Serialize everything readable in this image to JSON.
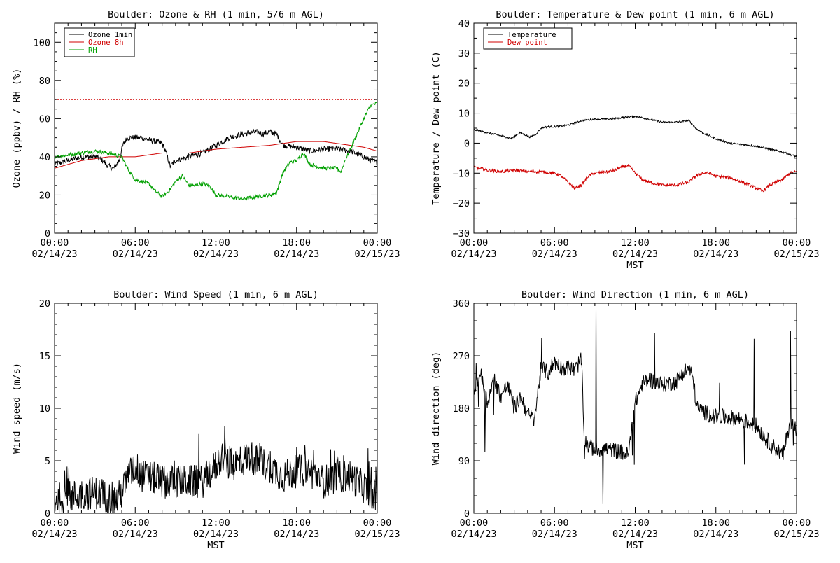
{
  "chart_data": [
    {
      "type": "line",
      "title": "Boulder: Ozone & RH (1 min, 5/6 m AGL)",
      "xlabel": "",
      "ylabel": "Ozone (ppbv) / RH (%)",
      "xlim": [
        0,
        24
      ],
      "ylim": [
        0,
        110
      ],
      "xticks": [
        0,
        6,
        12,
        18,
        24
      ],
      "xtick_labels": [
        [
          "00:00",
          "02/14/23"
        ],
        [
          "06:00",
          "02/14/23"
        ],
        [
          "12:00",
          "02/14/23"
        ],
        [
          "18:00",
          "02/14/23"
        ],
        [
          "00:00",
          "02/15/23"
        ]
      ],
      "yticks": [
        0,
        20,
        40,
        60,
        80,
        100
      ],
      "ytick_labels": [
        "0",
        "20",
        "40",
        "60",
        "80",
        "100"
      ],
      "legend_position": "top-left",
      "reference_line": {
        "y": 70,
        "color": "#d00000",
        "style": "dotted"
      },
      "series": [
        {
          "name": "Ozone 1min",
          "color": "#000000",
          "noise": 1.5,
          "x": [
            0,
            1,
            2,
            3,
            3.6,
            4,
            4.4,
            4.8,
            5,
            5.2,
            5.5,
            6,
            6.5,
            7,
            7.5,
            8,
            8.3,
            8.6,
            9,
            10,
            11,
            12,
            13,
            14,
            15,
            15.5,
            16,
            16.5,
            17,
            18,
            19,
            20,
            21,
            22,
            23,
            23.5,
            24
          ],
          "y": [
            36,
            38,
            40,
            40,
            38,
            35,
            34,
            38,
            44,
            48,
            50,
            50,
            50,
            49,
            48,
            47,
            42,
            35,
            38,
            40,
            42,
            46,
            50,
            52,
            53,
            52,
            53,
            52,
            46,
            45,
            43,
            44,
            44,
            43,
            40,
            38,
            37
          ]
        },
        {
          "name": "Ozone 8h",
          "color": "#d00000",
          "noise": 0,
          "x": [
            0,
            2,
            4,
            6,
            8,
            10,
            12,
            14,
            16,
            17,
            18,
            19,
            20,
            21,
            22,
            23,
            24
          ],
          "y": [
            34,
            38,
            40,
            40,
            42,
            42,
            44,
            45,
            46,
            47,
            48,
            48,
            48,
            47,
            46,
            45,
            43
          ]
        },
        {
          "name": "RH",
          "color": "#00a000",
          "noise": 1,
          "x": [
            0,
            1,
            2,
            3,
            4,
            5,
            5.5,
            6,
            7,
            7.5,
            8,
            8.5,
            9,
            9.5,
            10,
            10.5,
            11,
            11.5,
            12,
            13,
            14,
            15,
            16,
            16.5,
            17,
            17.5,
            18,
            18.5,
            19,
            20,
            21,
            21.3,
            21.6,
            22,
            22.5,
            23,
            23.5,
            24
          ],
          "y": [
            40,
            41,
            42,
            43,
            42,
            40,
            33,
            28,
            26,
            22,
            19,
            22,
            27,
            30,
            25,
            25,
            26,
            25,
            20,
            19,
            18,
            19,
            20,
            21,
            32,
            37,
            38,
            42,
            36,
            34,
            34,
            32,
            38,
            44,
            52,
            60,
            67,
            68
          ]
        }
      ]
    },
    {
      "type": "line",
      "title": "Boulder: Temperature & Dew point (1 min, 6 m AGL)",
      "xlabel": "MST",
      "ylabel": "Temperature / Dew point (C)",
      "xlim": [
        0,
        24
      ],
      "ylim": [
        -30,
        40
      ],
      "xticks": [
        0,
        6,
        12,
        18,
        24
      ],
      "xtick_labels": [
        [
          "00:00",
          "02/14/23"
        ],
        [
          "06:00",
          "02/14/23"
        ],
        [
          "12:00",
          "02/14/23"
        ],
        [
          "18:00",
          "02/14/23"
        ],
        [
          "00:00",
          "02/15/23"
        ]
      ],
      "yticks": [
        -30,
        -20,
        -10,
        0,
        10,
        20,
        30,
        40
      ],
      "ytick_labels": [
        "−30",
        "−20",
        "−10",
        "0",
        "10",
        "20",
        "30",
        "40"
      ],
      "legend_position": "top-left",
      "series": [
        {
          "name": "Temperature",
          "color": "#000000",
          "noise": 0.3,
          "x": [
            0,
            1,
            2,
            2.8,
            3.4,
            3.7,
            4.2,
            4.6,
            5,
            5.5,
            6,
            7,
            8,
            9,
            10,
            11,
            12,
            13,
            14,
            15,
            16,
            16.5,
            17,
            18,
            19,
            20,
            21,
            22,
            23,
            24
          ],
          "y": [
            4.5,
            3.5,
            2.5,
            1.5,
            3.5,
            3,
            2,
            3,
            5,
            5.5,
            5.5,
            6,
            7.5,
            8,
            8,
            8.5,
            9,
            8,
            7,
            7,
            7.5,
            5,
            3.5,
            1.5,
            0,
            -0.5,
            -1,
            -2,
            -3,
            -4.5
          ]
        },
        {
          "name": "Dew point",
          "color": "#d00000",
          "noise": 0.5,
          "x": [
            0,
            1,
            2,
            3,
            4,
            5,
            6,
            6.5,
            7,
            7.5,
            8,
            8.5,
            9,
            10,
            10.5,
            11,
            11.5,
            12,
            12.5,
            13,
            14,
            15,
            16,
            16.5,
            17,
            17.5,
            18,
            19,
            20,
            21,
            21.5,
            22,
            23,
            23.5,
            24
          ],
          "y": [
            -8,
            -9,
            -9.5,
            -9,
            -9.5,
            -9.5,
            -10,
            -11,
            -13,
            -15,
            -14,
            -11,
            -10,
            -9.5,
            -9,
            -8,
            -7.5,
            -10,
            -12,
            -13,
            -14,
            -14,
            -13,
            -11,
            -10,
            -10,
            -11,
            -11.5,
            -13,
            -15,
            -16,
            -14,
            -12,
            -10,
            -9.5
          ]
        }
      ]
    },
    {
      "type": "line",
      "title": "Boulder: Wind Speed (1 min, 6 m AGL)",
      "xlabel": "MST",
      "ylabel": "Wind speed (m/s)",
      "xlim": [
        0,
        24
      ],
      "ylim": [
        0,
        20
      ],
      "xticks": [
        0,
        6,
        12,
        18,
        24
      ],
      "xtick_labels": [
        [
          "00:00",
          "02/14/23"
        ],
        [
          "06:00",
          "02/14/23"
        ],
        [
          "12:00",
          "02/14/23"
        ],
        [
          "18:00",
          "02/14/23"
        ],
        [
          "00:00",
          "02/15/23"
        ]
      ],
      "yticks": [
        0,
        5,
        10,
        15,
        20
      ],
      "ytick_labels": [
        "0",
        "5",
        "10",
        "15",
        "20"
      ],
      "series": [
        {
          "name": "",
          "color": "#000000",
          "noise": 1.6,
          "x": [
            0,
            1,
            2,
            3,
            4,
            4.6,
            5,
            5.5,
            6,
            6.5,
            7,
            8,
            9,
            10,
            11,
            12,
            12.5,
            13,
            14,
            14.5,
            15,
            16,
            17,
            18,
            19,
            20,
            21,
            22,
            23,
            24
          ],
          "y": [
            1.3,
            1.5,
            1.8,
            2,
            1.5,
            1.2,
            2,
            3.5,
            4.5,
            3.5,
            3.5,
            3,
            3,
            3,
            3,
            4.5,
            5.5,
            4.5,
            5,
            5.5,
            5,
            4.5,
            3.5,
            4,
            4,
            3,
            3.5,
            3.5,
            2.5,
            1.5
          ]
        }
      ]
    },
    {
      "type": "line",
      "title": "Boulder: Wind Direction (1 min, 6 m AGL)",
      "xlabel": "MST",
      "ylabel": "Wind direction (deg)",
      "xlim": [
        0,
        24
      ],
      "ylim": [
        0,
        360
      ],
      "xticks": [
        0,
        6,
        12,
        18,
        24
      ],
      "xtick_labels": [
        [
          "00:00",
          "02/14/23"
        ],
        [
          "06:00",
          "02/14/23"
        ],
        [
          "12:00",
          "02/14/23"
        ],
        [
          "18:00",
          "02/14/23"
        ],
        [
          "00:00",
          "02/15/23"
        ]
      ],
      "yticks": [
        0,
        90,
        180,
        270,
        360
      ],
      "ytick_labels": [
        "0",
        "90",
        "180",
        "270",
        "360"
      ],
      "series": [
        {
          "name": "",
          "color": "#000000",
          "noise": 14,
          "x": [
            0,
            0.5,
            1,
            1.5,
            2,
            2.5,
            3,
            3.5,
            4,
            4.5,
            5,
            5.5,
            6,
            6.5,
            7,
            7.5,
            8,
            8.2,
            8.5,
            9,
            10,
            11,
            11.5,
            12,
            12.5,
            13,
            14,
            15,
            15.5,
            16,
            16.3,
            16.6,
            17,
            18,
            19,
            20,
            21,
            22,
            23,
            23.5,
            24
          ],
          "y": [
            210,
            240,
            190,
            230,
            200,
            220,
            180,
            200,
            170,
            160,
            250,
            240,
            260,
            250,
            250,
            245,
            265,
            130,
            115,
            110,
            110,
            105,
            100,
            190,
            220,
            230,
            220,
            225,
            240,
            250,
            230,
            180,
            175,
            165,
            165,
            160,
            150,
            120,
            100,
            155,
            145
          ]
        }
      ]
    }
  ]
}
